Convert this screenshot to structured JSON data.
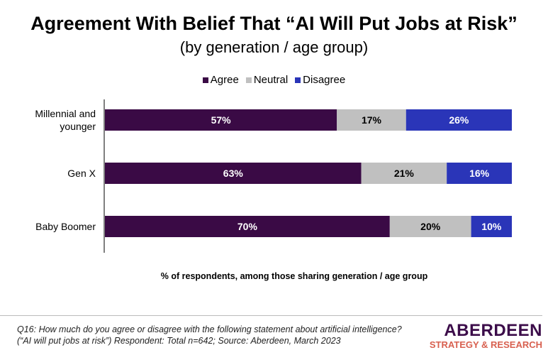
{
  "chart_data": {
    "type": "bar",
    "orientation": "horizontal",
    "stacked": true,
    "title": "Agreement With Belief That “AI Will Put Jobs at Risk”",
    "subtitle": "(by generation / age group)",
    "xlabel": "% of respondents, among those sharing generation / age group",
    "ylabel": "",
    "xlim": [
      0,
      100
    ],
    "legend_position": "top-center",
    "categories": [
      "Millennial and younger",
      "Gen X",
      "Baby Boomer"
    ],
    "category_lines": [
      [
        "Millennial and",
        "younger"
      ],
      [
        "Gen X"
      ],
      [
        "Baby Boomer"
      ]
    ],
    "series": [
      {
        "name": "Agree",
        "color": "#3a0a45",
        "label_color": "#ffffff",
        "values": [
          57,
          63,
          70
        ],
        "labels": [
          "57%",
          "63%",
          "70%"
        ]
      },
      {
        "name": "Neutral",
        "color": "#c0c0c0",
        "label_color": "#000000",
        "values": [
          17,
          21,
          20
        ],
        "labels": [
          "17%",
          "21%",
          "20%"
        ]
      },
      {
        "name": "Disagree",
        "color": "#2a35b8",
        "label_color": "#ffffff",
        "values": [
          26,
          16,
          10
        ],
        "labels": [
          "26%",
          "16%",
          "10%"
        ]
      }
    ]
  },
  "footer": {
    "line1": "Q16: How much do you agree or disagree with the following statement about artificial intelligence?",
    "line2": "(“AI will put jobs at risk”) Respondent: Total n=642; Source: Aberdeen, March 2023"
  },
  "logo": {
    "main": "ABERDEEN",
    "sub": "STRATEGY & RESEARCH"
  }
}
